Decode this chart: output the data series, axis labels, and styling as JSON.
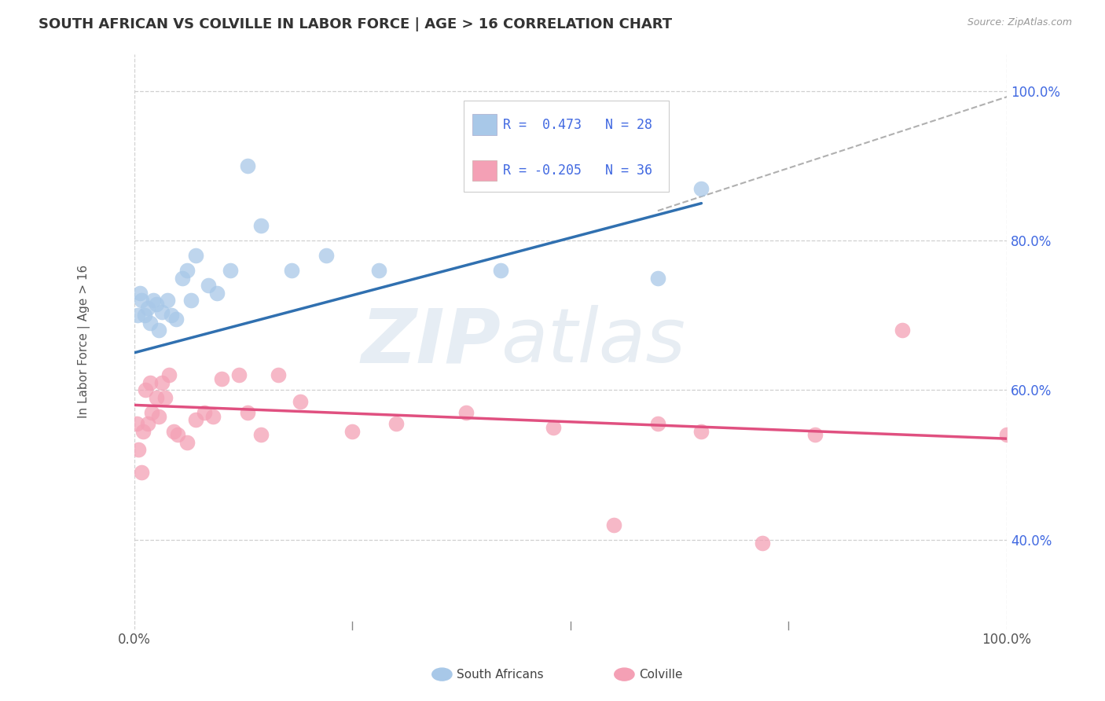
{
  "title": "SOUTH AFRICAN VS COLVILLE IN LABOR FORCE | AGE > 16 CORRELATION CHART",
  "source": "Source: ZipAtlas.com",
  "ylabel": "In Labor Force | Age > 16",
  "xlim": [
    0,
    1
  ],
  "ylim": [
    0.28,
    1.05
  ],
  "y_tick_values": [
    0.4,
    0.6,
    0.8,
    1.0
  ],
  "y_tick_labels": [
    "40.0%",
    "60.0%",
    "80.0%",
    "100.0%"
  ],
  "x_tick_values": [
    0.0,
    0.25,
    0.5,
    0.75,
    1.0
  ],
  "x_tick_labels": [
    "0.0%",
    "",
    "",
    "",
    "100.0%"
  ],
  "blue_color": "#a8c8e8",
  "pink_color": "#f4a0b5",
  "line_blue": "#3070b0",
  "line_pink": "#e05080",
  "line_dashed_color": "#b0b0b0",
  "title_color": "#333333",
  "legend_text_color": "#4169e1",
  "watermark_color": "#c8d8e8",
  "grid_color": "#d0d0d0",
  "background_color": "#ffffff",
  "south_africans_x": [
    0.004,
    0.006,
    0.008,
    0.012,
    0.015,
    0.018,
    0.022,
    0.025,
    0.028,
    0.032,
    0.038,
    0.042,
    0.048,
    0.055,
    0.06,
    0.065,
    0.07,
    0.085,
    0.095,
    0.11,
    0.13,
    0.145,
    0.18,
    0.22,
    0.28,
    0.42,
    0.6,
    0.65
  ],
  "south_africans_y": [
    0.7,
    0.73,
    0.72,
    0.7,
    0.71,
    0.69,
    0.72,
    0.715,
    0.68,
    0.705,
    0.72,
    0.7,
    0.695,
    0.75,
    0.76,
    0.72,
    0.78,
    0.74,
    0.73,
    0.76,
    0.9,
    0.82,
    0.76,
    0.78,
    0.76,
    0.76,
    0.75,
    0.87
  ],
  "colville_x": [
    0.003,
    0.005,
    0.008,
    0.01,
    0.013,
    0.015,
    0.018,
    0.02,
    0.025,
    0.028,
    0.032,
    0.035,
    0.04,
    0.045,
    0.05,
    0.06,
    0.07,
    0.08,
    0.09,
    0.1,
    0.12,
    0.13,
    0.145,
    0.165,
    0.19,
    0.25,
    0.3,
    0.38,
    0.48,
    0.55,
    0.6,
    0.65,
    0.72,
    0.78,
    0.88,
    1.0
  ],
  "colville_y": [
    0.555,
    0.52,
    0.49,
    0.545,
    0.6,
    0.555,
    0.61,
    0.57,
    0.59,
    0.565,
    0.61,
    0.59,
    0.62,
    0.545,
    0.54,
    0.53,
    0.56,
    0.57,
    0.565,
    0.615,
    0.62,
    0.57,
    0.54,
    0.62,
    0.585,
    0.545,
    0.555,
    0.57,
    0.55,
    0.42,
    0.555,
    0.545,
    0.395,
    0.54,
    0.68,
    0.54
  ],
  "blue_line_x_start": 0.0,
  "blue_line_x_end": 0.65,
  "blue_line_y_start": 0.65,
  "blue_line_y_end": 0.85,
  "pink_line_x_start": 0.0,
  "pink_line_x_end": 1.0,
  "pink_line_y_start": 0.58,
  "pink_line_y_end": 0.535,
  "dashed_line_x_start": 0.6,
  "dashed_line_x_end": 1.02,
  "dashed_line_y_start": 0.84,
  "dashed_line_y_end": 1.0
}
